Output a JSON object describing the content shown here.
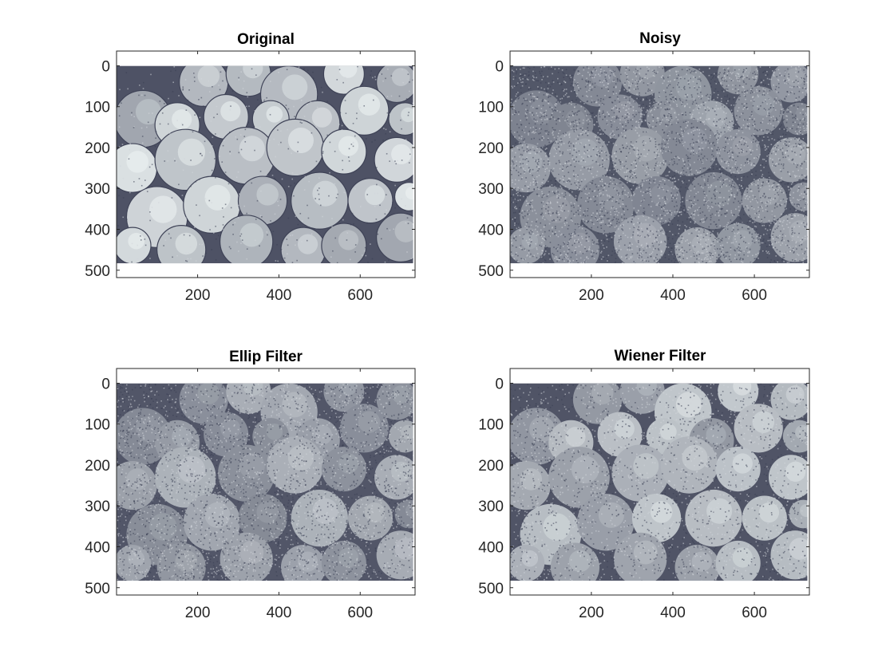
{
  "figure": {
    "colormap": "bone",
    "colors": {
      "background": "#ffffff",
      "axis": "#262626",
      "image_dark": "#2b2f45",
      "image_light": "#eef4f4"
    }
  },
  "chart_data": [
    {
      "type": "heatmap",
      "title": "Original",
      "xlabel": "",
      "ylabel": "",
      "xticks": [
        200,
        400,
        600
      ],
      "yticks": [
        0,
        100,
        200,
        300,
        400,
        500
      ],
      "xlim": [
        0.5,
        735
      ],
      "ylim": [
        -36,
        518
      ],
      "image_extent": {
        "x": [
          0.5,
          730
        ],
        "y": [
          0.5,
          483
        ]
      },
      "content": "apples",
      "noise": 0.06,
      "brightness": 1.0,
      "blur": 0
    },
    {
      "type": "heatmap",
      "title": "Noisy",
      "xlabel": "",
      "ylabel": "",
      "xticks": [
        200,
        400,
        600
      ],
      "yticks": [
        0,
        100,
        200,
        300,
        400,
        500
      ],
      "xlim": [
        0.5,
        735
      ],
      "ylim": [
        -36,
        518
      ],
      "image_extent": {
        "x": [
          0.5,
          730
        ],
        "y": [
          0.5,
          483
        ]
      },
      "content": "apples",
      "noise": 0.55,
      "brightness": 0.55,
      "blur": 2
    },
    {
      "type": "heatmap",
      "title": "Ellip Filter",
      "xlabel": "",
      "ylabel": "",
      "xticks": [
        200,
        400,
        600
      ],
      "yticks": [
        0,
        100,
        200,
        300,
        400,
        500
      ],
      "xlim": [
        0.5,
        735
      ],
      "ylim": [
        -36,
        518
      ],
      "image_extent": {
        "x": [
          0.5,
          730
        ],
        "y": [
          0.5,
          483
        ]
      },
      "content": "apples",
      "noise": 0.45,
      "brightness": 0.65,
      "blur": 1
    },
    {
      "type": "heatmap",
      "title": "Wiener Filter",
      "xlabel": "",
      "ylabel": "",
      "xticks": [
        200,
        400,
        600
      ],
      "yticks": [
        0,
        100,
        200,
        300,
        400,
        500
      ],
      "xlim": [
        0.5,
        735
      ],
      "ylim": [
        -36,
        518
      ],
      "image_extent": {
        "x": [
          0.5,
          730
        ],
        "y": [
          0.5,
          483
        ]
      },
      "content": "apples",
      "noise": 0.3,
      "brightness": 0.8,
      "blur": 1
    }
  ]
}
